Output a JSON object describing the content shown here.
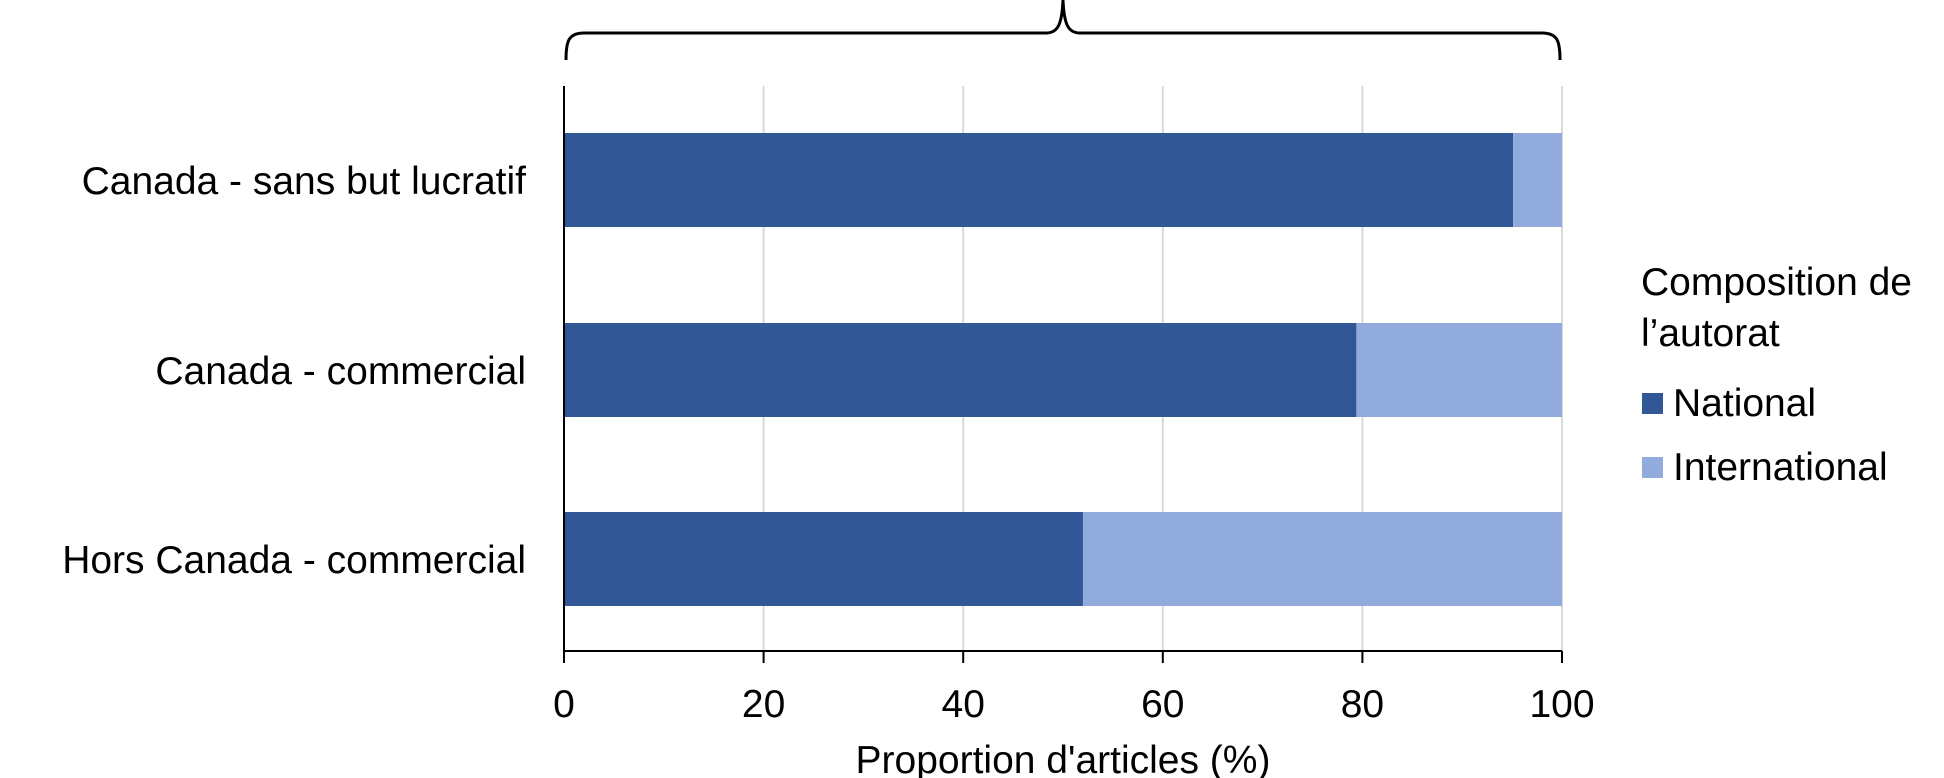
{
  "chart_data": {
    "type": "bar",
    "orientation": "horizontal",
    "stacked": true,
    "title": "",
    "xlabel": "Proportion d'articles (%)",
    "ylabel": "",
    "xlim": [
      0,
      100
    ],
    "xticks": [
      "0",
      "20",
      "40",
      "60",
      "80",
      "100"
    ],
    "categories": [
      "Canada - sans but lucratif",
      "Canada - commercial",
      "Hors Canada - commercial"
    ],
    "series": [
      {
        "name": "National",
        "color": "#325796",
        "values": [
          95.1,
          79.4,
          52
        ]
      },
      {
        "name": "International",
        "color": "#90abdc",
        "values": [
          4.9,
          20.6,
          48
        ]
      }
    ],
    "legend": {
      "title_lines": [
        "Composition de",
        "l’autorat"
      ],
      "placement": "right"
    },
    "grid": true,
    "top_brace": true
  }
}
